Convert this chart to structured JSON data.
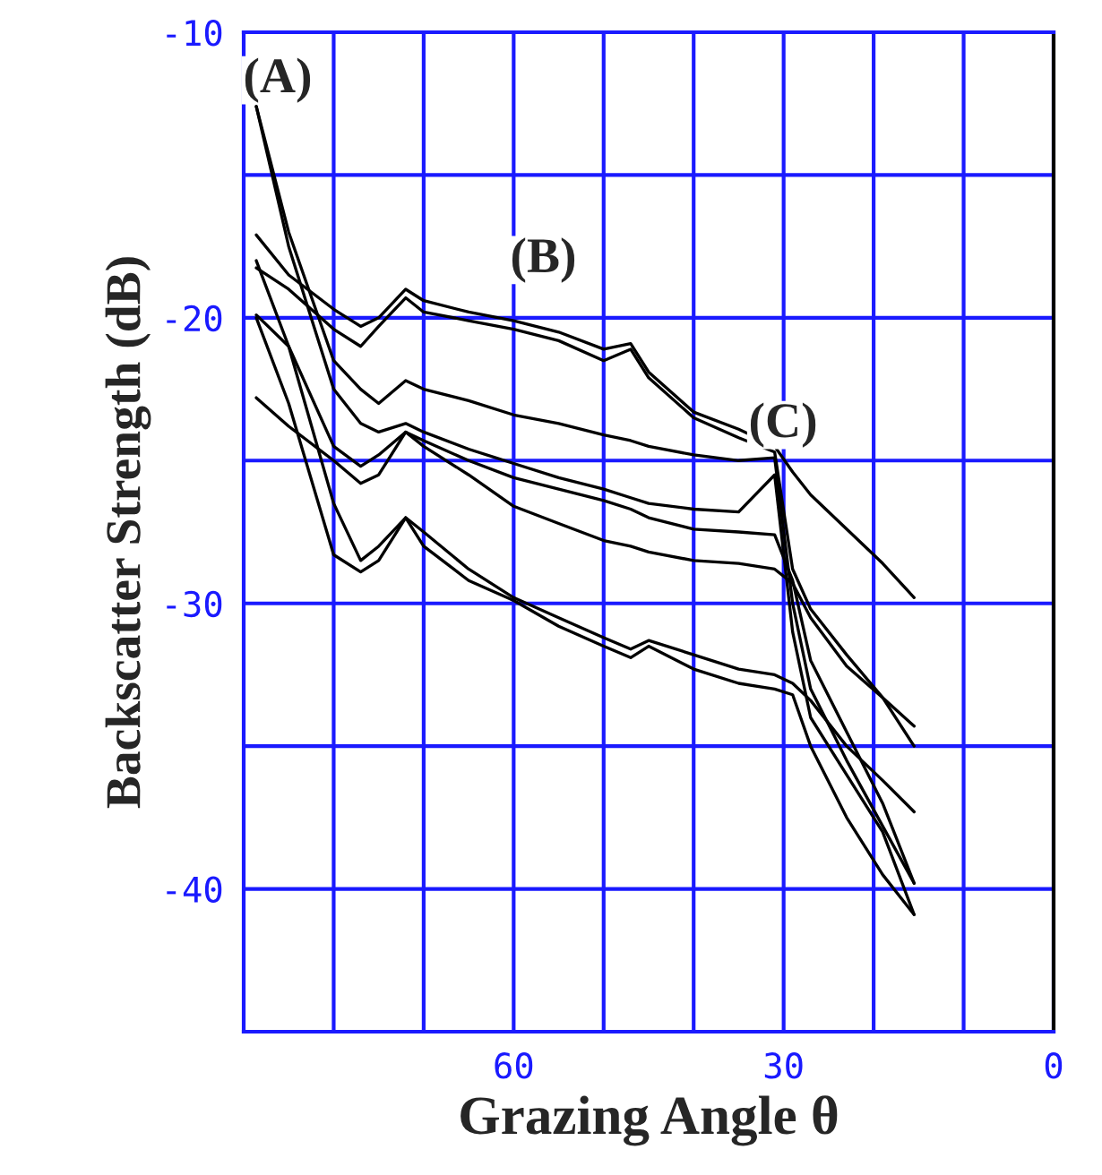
{
  "chart_data": {
    "type": "line",
    "xlabel": "Grazing Angle θ",
    "ylabel": "Backscatter Strength (dB)",
    "xlim": [
      90,
      0
    ],
    "ylim": [
      -45,
      -10
    ],
    "xticks": [
      {
        "value": 80,
        "label": null
      },
      {
        "value": 70,
        "label": null
      },
      60,
      {
        "value": 50,
        "label": null
      },
      {
        "value": 40,
        "label": null
      },
      30,
      {
        "value": 20,
        "label": null
      },
      {
        "value": 10,
        "label": null
      },
      0
    ],
    "yticks": [
      -10,
      {
        "value": -15,
        "label": null
      },
      -20,
      {
        "value": -25,
        "label": null
      },
      -30,
      {
        "value": -35,
        "label": null
      },
      -40,
      {
        "value": -45,
        "label": null
      }
    ],
    "grid": true,
    "legend": false,
    "marker": "none",
    "line_style": "solid",
    "x": [
      88.6,
      85,
      80,
      77,
      75,
      72,
      70,
      65,
      60,
      55,
      50,
      47,
      45,
      40,
      35,
      31,
      29,
      27,
      23,
      19,
      15.5
    ],
    "series": [
      {
        "color": "#000000",
        "values": [
          -17.1,
          -18.5,
          -19.7,
          -20.3,
          -20.0,
          -19.0,
          -19.4,
          -19.8,
          -20.1,
          -20.5,
          -21.1,
          -20.9,
          -21.9,
          -23.3,
          -23.9,
          -24.5,
          -25.4,
          -26.2,
          -27.4,
          -28.6,
          -29.8
        ]
      },
      {
        "color": "#000000",
        "values": [
          -18.25,
          -19.0,
          -20.4,
          -21.0,
          -20.3,
          -19.3,
          -19.8,
          -20.1,
          -20.4,
          -20.8,
          -21.5,
          -21.1,
          -22.1,
          -23.5,
          -24.2,
          -24.7,
          -28.8,
          -30.2,
          -31.8,
          -33.3,
          -34.3
        ]
      },
      {
        "color": "#000000",
        "values": [
          -12.6,
          -17.0,
          -21.5,
          -22.5,
          -23.0,
          -22.2,
          -22.5,
          -22.9,
          -23.4,
          -23.7,
          -24.1,
          -24.3,
          -24.5,
          -24.8,
          -25.0,
          -24.9,
          -30.0,
          -33.0,
          -35.5,
          -37.8,
          -39.8
        ]
      },
      {
        "color": "#000000",
        "values": [
          -12.6,
          -17.5,
          -22.5,
          -23.7,
          -24.0,
          -23.7,
          -24.0,
          -24.6,
          -25.1,
          -25.6,
          -26.0,
          -26.3,
          -26.5,
          -26.7,
          -26.8,
          -25.5,
          -31.0,
          -34.0,
          -36.0,
          -38.0,
          -40.9
        ]
      },
      {
        "color": "#000000",
        "values": [
          -19.9,
          -21.0,
          -24.5,
          -25.2,
          -24.8,
          -24.0,
          -24.3,
          -25.0,
          -25.6,
          -26.0,
          -26.4,
          -26.7,
          -27.0,
          -27.4,
          -27.5,
          -27.6,
          -29.2,
          -32.0,
          -34.5,
          -37.0,
          -39.8
        ]
      },
      {
        "color": "#000000",
        "values": [
          -22.8,
          -23.8,
          -25.0,
          -25.8,
          -25.5,
          -24.0,
          -24.5,
          -25.5,
          -26.6,
          -27.2,
          -27.8,
          -28.0,
          -28.2,
          -28.5,
          -28.6,
          -28.8,
          -29.3,
          -30.5,
          -32.2,
          -33.3,
          -35.0
        ]
      },
      {
        "color": "#000000",
        "values": [
          -18.0,
          -21.0,
          -26.5,
          -28.5,
          -28.0,
          -27.0,
          -27.5,
          -28.8,
          -29.8,
          -30.5,
          -31.2,
          -31.6,
          -31.3,
          -31.8,
          -32.3,
          -32.5,
          -32.8,
          -33.4,
          -35.0,
          -36.2,
          -37.3
        ]
      },
      {
        "color": "#000000",
        "values": [
          -20.0,
          -23.0,
          -28.3,
          -28.9,
          -28.5,
          -27.0,
          -28.0,
          -29.2,
          -29.9,
          -30.8,
          -31.5,
          -31.9,
          -31.5,
          -32.3,
          -32.8,
          -33.0,
          -33.2,
          -35.0,
          -37.5,
          -39.5,
          -40.9
        ]
      }
    ],
    "annotations": [
      "(A)",
      "(B)",
      "(C)"
    ]
  }
}
